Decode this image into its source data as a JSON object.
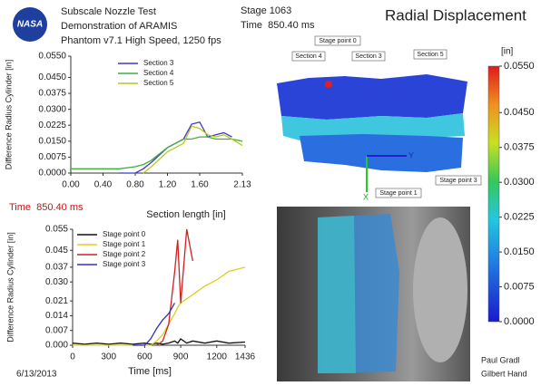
{
  "header": {
    "logo": "NASA",
    "lines": [
      "Subscale Nozzle Test",
      "Demonstration of ARAMIS",
      "Phantom v7.1 High Speed, 1250 fps"
    ],
    "stage": "Stage 1063",
    "time": "Time  850.40 ms",
    "title": "Radial Displacement"
  },
  "time_marker": "Time  850.40 ms",
  "map": {
    "labels": [
      "Stage point 0",
      "Section 4",
      "Section 3",
      "Section 5",
      "Stage point 1",
      "Stage point 3",
      "Y",
      "X"
    ]
  },
  "footer": {
    "date": "6/13/2013",
    "authors": [
      "Paul Gradl",
      "Gilbert Hand"
    ]
  },
  "chart_data": [
    {
      "type": "line",
      "x_label": "Section length [in]",
      "y_label": "Difference Radius Cylinder [in]",
      "x": [
        0,
        0.2,
        0.4,
        0.6,
        0.8,
        0.9,
        1.0,
        1.2,
        1.4,
        1.5,
        1.6,
        1.7,
        1.8,
        1.9,
        2.0,
        2.13
      ],
      "series": [
        {
          "name": "Section 3",
          "color": "#3a3ac8",
          "values": [
            null,
            null,
            null,
            0.0,
            0.0,
            0.002,
            0.005,
            0.012,
            0.016,
            0.023,
            0.024,
            0.017,
            0.018,
            0.019,
            0.017,
            null
          ]
        },
        {
          "name": "Section 4",
          "color": "#3cb03c",
          "values": [
            0.002,
            0.002,
            0.002,
            0.002,
            0.003,
            0.004,
            0.006,
            0.012,
            0.016,
            0.016,
            0.017,
            0.017,
            0.016,
            0.016,
            0.016,
            0.015
          ]
        },
        {
          "name": "Section 5",
          "color": "#b8c820",
          "values": [
            null,
            null,
            null,
            null,
            null,
            0.0,
            0.003,
            0.01,
            0.014,
            0.022,
            0.021,
            0.018,
            0.017,
            0.018,
            0.016,
            0.013
          ]
        }
      ],
      "xlim": [
        0,
        2.13
      ],
      "xticks": [
        {
          "value": 0,
          "label": "0.00"
        },
        {
          "value": 0.4,
          "label": "0.40"
        },
        {
          "value": 0.8,
          "label": "0.80"
        },
        {
          "value": 1.2,
          "label": "1.20"
        },
        {
          "value": 1.6,
          "label": "1.60"
        },
        {
          "value": 2.13,
          "label": "2.13"
        }
      ],
      "ylim": [
        0,
        0.055
      ],
      "yticks": [
        {
          "value": 0,
          "label": "0.0000"
        },
        {
          "value": 0.0075,
          "label": "0.0075"
        },
        {
          "value": 0.015,
          "label": "0.0150"
        },
        {
          "value": 0.0225,
          "label": "0.0225"
        },
        {
          "value": 0.03,
          "label": "0.0300"
        },
        {
          "value": 0.0375,
          "label": "0.0375"
        },
        {
          "value": 0.045,
          "label": "0.0450"
        },
        {
          "value": 0.055,
          "label": "0.0550"
        }
      ]
    },
    {
      "type": "line",
      "x_label": "Time [ms]",
      "y_label": "Difference Radius Cylinder [in]",
      "x": [
        0,
        100,
        200,
        300,
        400,
        500,
        600,
        650,
        700,
        750,
        800,
        850,
        875,
        900,
        950,
        1000,
        1100,
        1200,
        1300,
        1436
      ],
      "series": [
        {
          "name": "Stage point 0",
          "color": "#111111",
          "values": [
            0.001,
            0.0005,
            0.001,
            0.0005,
            0.001,
            0.0005,
            0.001,
            0.0005,
            0.001,
            0.0005,
            0.001,
            0.002,
            0.001,
            0.003,
            0.001,
            0.002,
            0.001,
            0.002,
            0.001,
            0.0015
          ]
        },
        {
          "name": "Stage point 1",
          "color": "#d8d020",
          "values": [
            0,
            0,
            0,
            0,
            0,
            0,
            0,
            0,
            0.002,
            0.005,
            0.01,
            0.015,
            0.018,
            0.02,
            0.022,
            0.024,
            0.028,
            0.031,
            0.035,
            0.037
          ]
        },
        {
          "name": "Stage point 2",
          "color": "#d02020",
          "values": [
            null,
            null,
            null,
            null,
            null,
            null,
            null,
            null,
            0,
            0.002,
            0.01,
            0.035,
            0.05,
            0.02,
            0.055,
            0.04,
            null,
            null,
            null,
            null
          ]
        },
        {
          "name": "Stage point 3",
          "color": "#3030c8",
          "values": [
            null,
            null,
            null,
            null,
            null,
            0,
            0,
            0.003,
            0.008,
            0.012,
            0.015,
            0.02,
            null,
            null,
            null,
            null,
            null,
            null,
            null,
            null
          ]
        }
      ],
      "xlim": [
        0,
        1436
      ],
      "xticks": [
        0,
        300,
        600,
        900,
        1200,
        1436
      ],
      "ylim": [
        0,
        0.055
      ],
      "yticks": [
        {
          "value": 0,
          "label": "0.000"
        },
        {
          "value": 0.007,
          "label": "0.007"
        },
        {
          "value": 0.014,
          "label": "0.014"
        },
        {
          "value": 0.021,
          "label": "0.021"
        },
        {
          "value": 0.03,
          "label": "0.030"
        },
        {
          "value": 0.037,
          "label": "0.037"
        },
        {
          "value": 0.045,
          "label": "0.045"
        },
        {
          "value": 0.055,
          "label": "0.055"
        }
      ]
    },
    {
      "type": "colorbar",
      "title": "[in]",
      "ylim": [
        0,
        0.055
      ],
      "yticks": [
        {
          "value": 0,
          "label": "0.0000"
        },
        {
          "value": 0.0075,
          "label": "0.0075"
        },
        {
          "value": 0.015,
          "label": "0.0150"
        },
        {
          "value": 0.0225,
          "label": "0.0225"
        },
        {
          "value": 0.03,
          "label": "0.0300"
        },
        {
          "value": 0.0375,
          "label": "0.0375"
        },
        {
          "value": 0.045,
          "label": "0.0450"
        },
        {
          "value": 0.055,
          "label": "0.0550"
        }
      ]
    }
  ]
}
